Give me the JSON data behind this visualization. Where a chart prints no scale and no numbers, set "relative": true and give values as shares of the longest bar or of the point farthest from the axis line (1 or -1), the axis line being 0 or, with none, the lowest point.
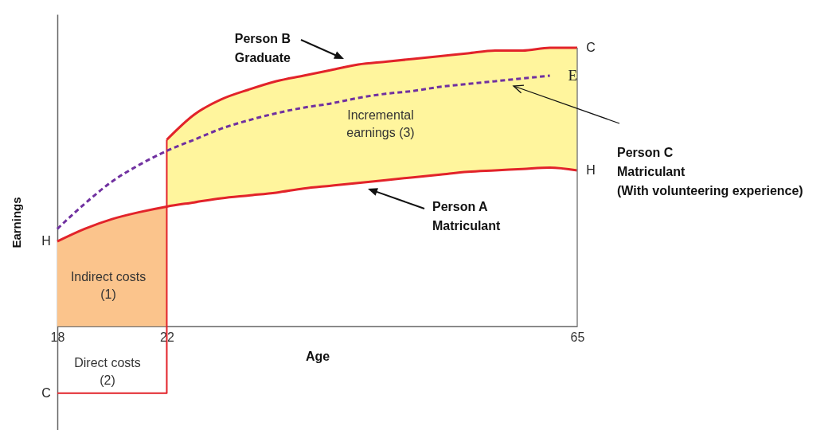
{
  "chart_data": {
    "type": "line",
    "relative": true,
    "xlabel": "Age",
    "ylabel": "Earnings",
    "categories": [
      "18",
      null,
      null,
      null,
      "22",
      null,
      null,
      null,
      null,
      null,
      null,
      null,
      null,
      null,
      null,
      null,
      null,
      null,
      null,
      "65"
    ],
    "series": [
      {
        "type": "area",
        "color": "#fbc48c",
        "values": [
          0.305,
          0.35,
          0.385,
          0.41,
          0.43,
          null,
          null,
          null,
          null,
          null,
          null,
          null,
          null,
          null,
          null,
          null,
          null,
          null,
          null,
          null
        ]
      },
      {
        "color": "#e2232a",
        "values": [
          0.305,
          0.35,
          0.385,
          0.41,
          0.43,
          0.445,
          0.46,
          0.47,
          0.48,
          0.495,
          0.505,
          0.515,
          0.525,
          0.535,
          0.545,
          0.555,
          0.56,
          0.565,
          0.57,
          0.56
        ]
      },
      {
        "color": "#e2232a",
        "values": [
          null,
          null,
          null,
          null,
          0.67,
          0.76,
          0.815,
          0.85,
          0.88,
          0.9,
          0.92,
          0.94,
          0.95,
          0.96,
          0.97,
          0.98,
          0.99,
          0.99,
          1.0,
          1.0
        ],
        "lower": [
          null,
          null,
          null,
          null,
          0.43,
          0.445,
          0.46,
          0.47,
          0.48,
          0.495,
          0.505,
          0.515,
          0.525,
          0.535,
          0.545,
          0.555,
          0.56,
          0.565,
          0.57,
          0.56
        ],
        "upper": [
          null,
          null,
          null,
          null,
          0.67,
          0.76,
          0.815,
          0.85,
          0.88,
          0.9,
          0.92,
          0.94,
          0.95,
          0.96,
          0.97,
          0.98,
          0.99,
          0.99,
          1.0,
          1.0
        ]
      },
      {
        "type": "step",
        "color": "#e2232a",
        "values": [
          -0.24,
          -0.24,
          -0.24,
          -0.24,
          0.67,
          null,
          null,
          null,
          null,
          null,
          null,
          null,
          null,
          null,
          null,
          null,
          null,
          null,
          null,
          null
        ]
      },
      {
        "color": "#7030a0",
        "line_style": "dashed",
        "values": [
          0.35,
          0.44,
          0.52,
          0.58,
          0.63,
          0.67,
          0.71,
          0.74,
          0.765,
          0.785,
          0.8,
          0.82,
          0.835,
          0.845,
          0.86,
          0.87,
          0.88,
          0.89,
          0.9,
          null
        ]
      }
    ],
    "ref_lines": [
      {
        "axis": "x",
        "value": "65",
        "color": "#808080"
      }
    ],
    "annotations": [
      {
        "text": "H",
        "x": "18",
        "y": 0.305
      },
      {
        "text": "C",
        "x": "18",
        "y": -0.24
      },
      {
        "text": "C",
        "x": "65",
        "y": 1.0
      },
      {
        "text": "E",
        "x": "65",
        "y": 0.9
      },
      {
        "text": "H",
        "x": "65",
        "y": 0.56
      },
      "Indirect costs\n(1)",
      "Direct costs\n(2)",
      "Incremental\nearnings (3)",
      "Person B\nGraduate",
      "Person A\nMatriculant",
      "Person C\nMatriculant\n(With volunteering experience)"
    ]
  }
}
